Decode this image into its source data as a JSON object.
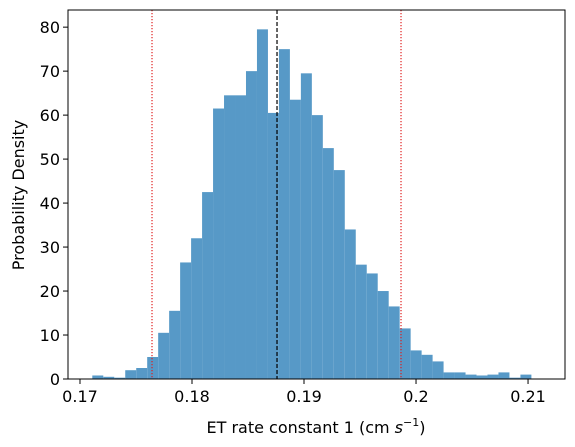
{
  "chart_data": {
    "type": "histogram",
    "xlabel": [
      "ET rate constant 1 (cm ",
      "s",
      "−1",
      ")"
    ],
    "ylabel": "Probability Density",
    "bins": [
      0.1711,
      0.17208,
      0.17306,
      0.17404,
      0.17502,
      0.176,
      0.17698,
      0.17796,
      0.17894,
      0.17992,
      0.1809,
      0.18188,
      0.18286,
      0.18384,
      0.18482,
      0.1858,
      0.18678,
      0.18776,
      0.18874,
      0.18972,
      0.1907,
      0.19168,
      0.19266,
      0.19364,
      0.19462,
      0.1956,
      0.19658,
      0.19756,
      0.19854,
      0.19952,
      0.2005,
      0.20148,
      0.20246,
      0.20344,
      0.20442,
      0.2054,
      0.20638,
      0.20736,
      0.20834,
      0.20932,
      0.2103
    ],
    "values": [
      0.8,
      0.5,
      0.3,
      2,
      2.5,
      5,
      10.5,
      15.5,
      26.5,
      32,
      42.5,
      61.5,
      64.5,
      64.5,
      70,
      79.5,
      60.5,
      75,
      63.5,
      69.5,
      60,
      52.5,
      47.5,
      34,
      26,
      24,
      20,
      16.5,
      11.5,
      6.5,
      5.5,
      4,
      1.5,
      1.5,
      1,
      0.8,
      1,
      1.5,
      0.3,
      1
    ],
    "color": "#5799c7",
    "vlines": [
      {
        "value": 0.17643,
        "color": "#e02020",
        "style": "dotted"
      },
      {
        "value": 0.18759,
        "color": "#000000",
        "style": "dashed"
      },
      {
        "value": 0.19866,
        "color": "#e02020",
        "style": "dotted"
      }
    ],
    "xlim": [
      0.16893,
      0.2133
    ],
    "ylim": [
      0,
      83.9
    ],
    "xticks": [
      0.17,
      0.18,
      0.19,
      0.2,
      0.21
    ],
    "yticks": [
      0,
      10,
      20,
      30,
      40,
      50,
      60,
      70,
      80
    ]
  }
}
